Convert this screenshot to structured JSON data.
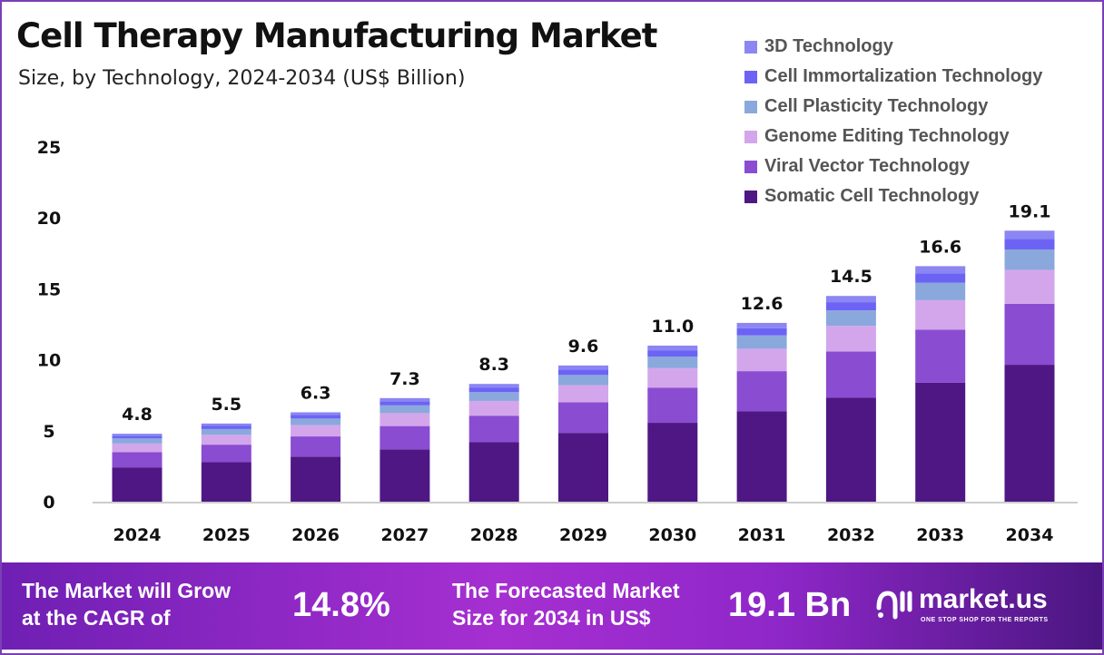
{
  "chart_data": {
    "type": "bar",
    "stacked": true,
    "title": "Cell Therapy Manufacturing Market",
    "subtitle": "Size, by Technology, 2024-2034 (US$ Billion)",
    "categories": [
      "2024",
      "2025",
      "2026",
      "2027",
      "2028",
      "2029",
      "2030",
      "2031",
      "2032",
      "2033",
      "2034"
    ],
    "totals": [
      "4.8",
      "5.5",
      "6.3",
      "7.3",
      "8.3",
      "9.6",
      "11.0",
      "12.6",
      "14.5",
      "16.6",
      "19.1"
    ],
    "ylim": [
      0,
      25
    ],
    "yticks": [
      "0",
      "5",
      "10",
      "15",
      "20",
      "25"
    ],
    "grid": false,
    "legend_position": "top-right",
    "series": [
      {
        "name": "Somatic Cell Technology",
        "color": "#4f1784",
        "values": [
          2.42,
          2.78,
          3.18,
          3.69,
          4.19,
          4.85,
          5.56,
          6.36,
          7.32,
          8.38,
          9.65
        ]
      },
      {
        "name": "Viral Vector Technology",
        "color": "#8a4cd0",
        "values": [
          1.08,
          1.24,
          1.42,
          1.64,
          1.87,
          2.16,
          2.48,
          2.84,
          3.26,
          3.74,
          4.3
        ]
      },
      {
        "name": "Genome Editing Technology",
        "color": "#d3a6ec",
        "values": [
          0.6,
          0.69,
          0.79,
          0.91,
          1.04,
          1.2,
          1.37,
          1.58,
          1.81,
          2.08,
          2.39
        ]
      },
      {
        "name": "Cell Plasticity Technology",
        "color": "#8aa8dc",
        "values": [
          0.36,
          0.41,
          0.47,
          0.55,
          0.62,
          0.72,
          0.82,
          0.94,
          1.09,
          1.24,
          1.43
        ]
      },
      {
        "name": "Cell Immortalization Technology",
        "color": "#6c63f5",
        "values": [
          0.19,
          0.22,
          0.25,
          0.29,
          0.33,
          0.38,
          0.44,
          0.5,
          0.58,
          0.66,
          0.76
        ]
      },
      {
        "name": "3D Technology",
        "color": "#8b86f2",
        "values": [
          0.14,
          0.17,
          0.19,
          0.22,
          0.25,
          0.29,
          0.33,
          0.38,
          0.44,
          0.5,
          0.57
        ]
      }
    ]
  },
  "footer": {
    "cagr_label_1": "The Market will Grow",
    "cagr_label_2": "at the CAGR of",
    "cagr_value": "14.8%",
    "forecast_label_1": "The Forecasted Market",
    "forecast_label_2": "Size for 2034 in US$",
    "forecast_value": "19.1 Bn",
    "brand": "market.us",
    "brand_tagline": "ONE STOP SHOP FOR THE REPORTS"
  }
}
